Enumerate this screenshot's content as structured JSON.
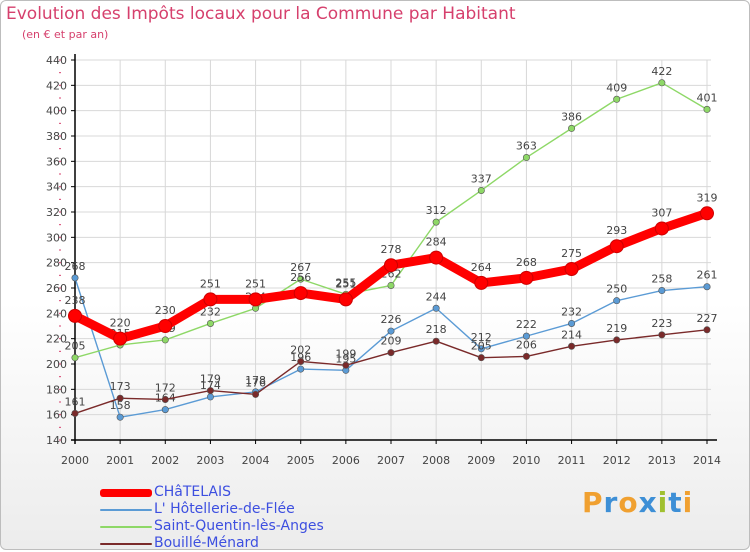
{
  "title": "Evolution des Impôts locaux pour la Commune par Habitant",
  "subtitle": "(en € et par an)",
  "brand": "Proxiti",
  "colors": {
    "title": "#d6406d",
    "axis": "#000000",
    "grid": "#d8d8d8",
    "axis_text": "#444444",
    "label": "#444444",
    "legend_text": "#3d4fe0",
    "brand_letters": [
      "#f0a030",
      "#3d8fd6",
      "#f0a030",
      "#3d8fd6",
      "#a0c030",
      "#3d8fd6",
      "#f0a030"
    ]
  },
  "chart_data": {
    "type": "line",
    "title": "Evolution des Impôts locaux pour la Commune par Habitant",
    "subtitle": "(en € et par an)",
    "xlabel": "",
    "ylabel": "",
    "x": [
      "2000",
      "2001",
      "2002",
      "2003",
      "2004",
      "2005",
      "2006",
      "2007",
      "2008",
      "2009",
      "2010",
      "2011",
      "2012",
      "2013",
      "2014"
    ],
    "ylim": [
      140,
      440
    ],
    "yticks": [
      140,
      160,
      180,
      200,
      220,
      240,
      260,
      280,
      300,
      320,
      340,
      360,
      380,
      400,
      420,
      440
    ],
    "grid": true,
    "legend_position": "bottom-left",
    "series": [
      {
        "name": "CHâTELAIS",
        "color": "#ff0000",
        "style": "thick",
        "values": [
          238,
          220,
          230,
          251,
          251,
          256,
          251,
          278,
          284,
          264,
          268,
          275,
          293,
          307,
          319
        ]
      },
      {
        "name": "L' Hôtellerie-de-Flée",
        "color": "#5b9bd5",
        "style": "thin",
        "values": [
          268,
          158,
          164,
          174,
          178,
          196,
          195,
          226,
          244,
          212,
          222,
          232,
          250,
          258,
          261
        ]
      },
      {
        "name": "Saint-Quentin-lès-Anges",
        "color": "#8ed867",
        "style": "thin",
        "values": [
          205,
          215,
          219,
          232,
          244,
          267,
          255,
          262,
          312,
          337,
          363,
          386,
          409,
          422,
          401
        ]
      },
      {
        "name": "Bouillé-Ménard",
        "color": "#7a2a2a",
        "style": "thin",
        "values": [
          161,
          173,
          172,
          179,
          176,
          202,
          199,
          209,
          218,
          205,
          206,
          214,
          219,
          223,
          227
        ]
      }
    ]
  }
}
